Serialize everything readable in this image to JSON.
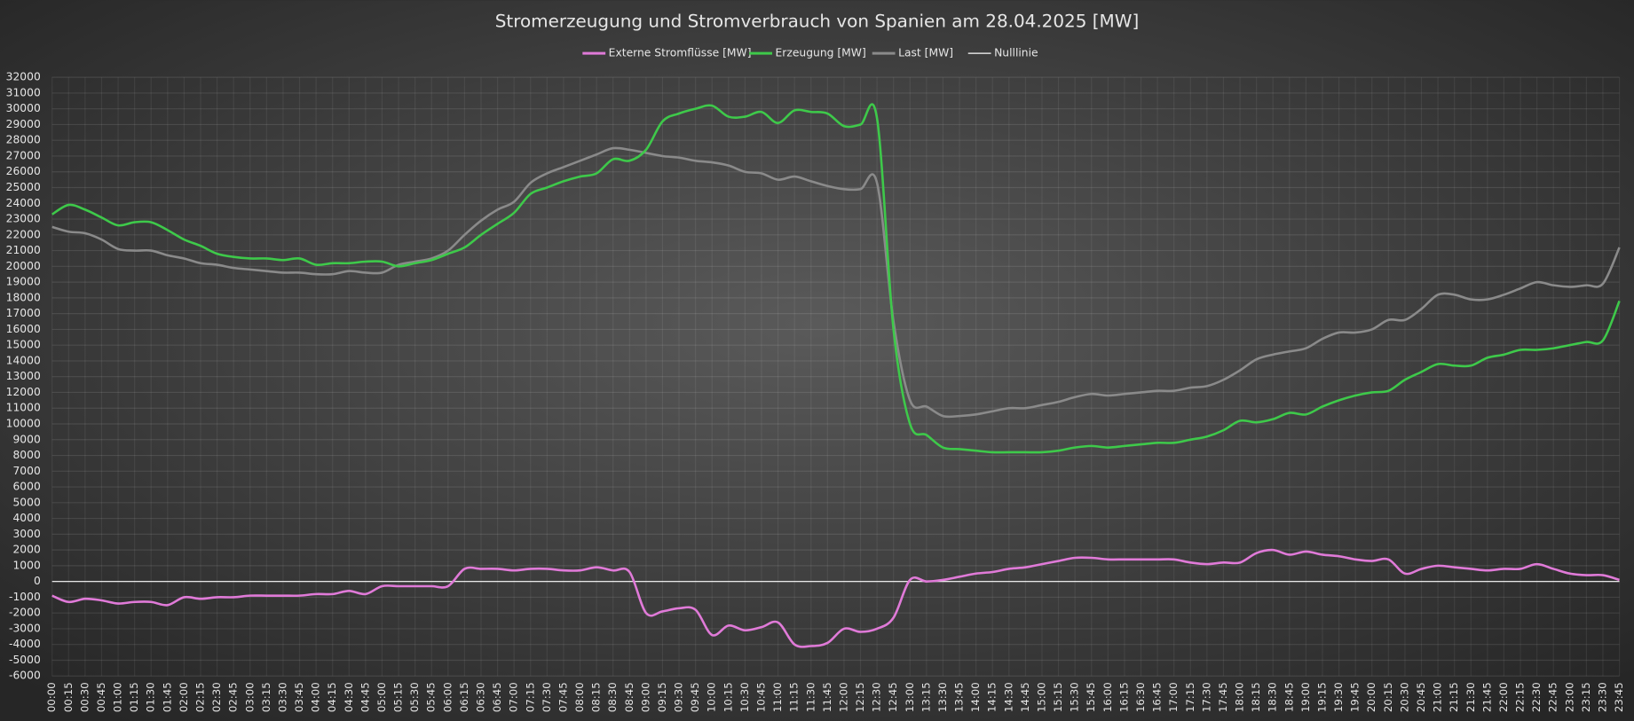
{
  "chart_data": {
    "type": "line",
    "title": "Stromerzeugung und Stromverbrauch von Spanien am 28.04.2025 [MW]",
    "categories": [
      "00:00",
      "00:15",
      "00:30",
      "00:45",
      "01:00",
      "01:15",
      "01:30",
      "01:45",
      "02:00",
      "02:15",
      "02:30",
      "02:45",
      "03:00",
      "03:15",
      "03:30",
      "03:45",
      "04:00",
      "04:15",
      "04:30",
      "04:45",
      "05:00",
      "05:15",
      "05:30",
      "05:45",
      "06:00",
      "06:15",
      "06:30",
      "06:45",
      "07:00",
      "07:15",
      "07:30",
      "07:45",
      "08:00",
      "08:15",
      "08:30",
      "08:45",
      "09:00",
      "09:15",
      "09:30",
      "09:45",
      "10:00",
      "10:15",
      "10:30",
      "10:45",
      "11:00",
      "11:15",
      "11:30",
      "11:45",
      "12:00",
      "12:15",
      "12:30",
      "12:45",
      "13:00",
      "13:15",
      "13:30",
      "13:45",
      "14:00",
      "14:15",
      "14:30",
      "14:45",
      "15:00",
      "15:15",
      "15:30",
      "15:45",
      "16:00",
      "16:15",
      "16:30",
      "16:45",
      "17:00",
      "17:15",
      "17:30",
      "17:45",
      "18:00",
      "18:15",
      "18:30",
      "18:45",
      "19:00",
      "19:15",
      "19:30",
      "19:45",
      "20:00",
      "20:15",
      "20:30",
      "20:45",
      "21:00",
      "21:15",
      "21:30",
      "21:45",
      "22:00",
      "22:15",
      "22:30",
      "22:45",
      "23:00",
      "23:15",
      "23:30",
      "23:45"
    ],
    "series": [
      {
        "name": "Externe Stromflüsse [MW]",
        "color": "#e07ad8",
        "values": [
          -900,
          -1300,
          -1100,
          -1200,
          -1400,
          -1300,
          -1300,
          -1500,
          -1000,
          -1100,
          -1000,
          -1000,
          -900,
          -900,
          -900,
          -900,
          -800,
          -800,
          -600,
          -800,
          -300,
          -300,
          -300,
          -300,
          -300,
          800,
          800,
          800,
          700,
          800,
          800,
          700,
          700,
          900,
          700,
          600,
          -2000,
          -1900,
          -1700,
          -1800,
          -3400,
          -2800,
          -3100,
          -2900,
          -2600,
          -4000,
          -4100,
          -3900,
          -3000,
          -3200,
          -3000,
          -2300,
          100,
          0,
          100,
          300,
          500,
          600,
          800,
          900,
          1100,
          1300,
          1500,
          1500,
          1400,
          1400,
          1400,
          1400,
          1400,
          1200,
          1100,
          1200,
          1200,
          1800,
          2000,
          1700,
          1900,
          1700,
          1600,
          1400,
          1300,
          1400,
          500,
          800,
          1000,
          900,
          800,
          700,
          800,
          800,
          1100,
          800,
          500,
          400,
          400,
          100
        ]
      },
      {
        "name": "Erzeugung [MW]",
        "color": "#3ec94a",
        "values": [
          23300,
          23900,
          23600,
          23100,
          22600,
          22800,
          22800,
          22300,
          21700,
          21300,
          20800,
          20600,
          20500,
          20500,
          20400,
          20500,
          20100,
          20200,
          20200,
          20300,
          20300,
          20000,
          20200,
          20400,
          20800,
          21200,
          22000,
          22700,
          23400,
          24600,
          25000,
          25400,
          25700,
          25900,
          26800,
          26700,
          27400,
          29200,
          29700,
          30000,
          30200,
          29500,
          29500,
          29800,
          29100,
          29900,
          29800,
          29700,
          28900,
          29000,
          29400,
          16000,
          10000,
          9300,
          8500,
          8400,
          8300,
          8200,
          8200,
          8200,
          8200,
          8300,
          8500,
          8600,
          8500,
          8600,
          8700,
          8800,
          8800,
          9000,
          9200,
          9600,
          10200,
          10100,
          10300,
          10700,
          10600,
          11100,
          11500,
          11800,
          12000,
          12100,
          12800,
          13300,
          13800,
          13700,
          13700,
          14200,
          14400,
          14700,
          14700,
          14800,
          15000,
          15200,
          15300,
          17800
        ]
      },
      {
        "name": "Last [MW]",
        "color": "#8a8a8a",
        "values": [
          22500,
          22200,
          22100,
          21700,
          21100,
          21000,
          21000,
          20700,
          20500,
          20200,
          20100,
          19900,
          19800,
          19700,
          19600,
          19600,
          19500,
          19500,
          19700,
          19600,
          19600,
          20100,
          20300,
          20500,
          21000,
          22000,
          22900,
          23600,
          24100,
          25300,
          25900,
          26300,
          26700,
          27100,
          27500,
          27400,
          27200,
          27000,
          26900,
          26700,
          26600,
          26400,
          26000,
          25900,
          25500,
          25700,
          25400,
          25100,
          24900,
          24900,
          25300,
          16500,
          11500,
          11100,
          10500,
          10500,
          10600,
          10800,
          11000,
          11000,
          11200,
          11400,
          11700,
          11900,
          11800,
          11900,
          12000,
          12100,
          12100,
          12300,
          12400,
          12800,
          13400,
          14100,
          14400,
          14600,
          14800,
          15400,
          15800,
          15800,
          16000,
          16600,
          16600,
          17300,
          18200,
          18200,
          17900,
          17900,
          18200,
          18600,
          19000,
          18800,
          18700,
          18800,
          18900,
          21200
        ]
      },
      {
        "name": "Nulllinie",
        "color": "#ffffff",
        "values": [
          0,
          0,
          0,
          0,
          0,
          0,
          0,
          0,
          0,
          0,
          0,
          0,
          0,
          0,
          0,
          0,
          0,
          0,
          0,
          0,
          0,
          0,
          0,
          0,
          0,
          0,
          0,
          0,
          0,
          0,
          0,
          0,
          0,
          0,
          0,
          0,
          0,
          0,
          0,
          0,
          0,
          0,
          0,
          0,
          0,
          0,
          0,
          0,
          0,
          0,
          0,
          0,
          0,
          0,
          0,
          0,
          0,
          0,
          0,
          0,
          0,
          0,
          0,
          0,
          0,
          0,
          0,
          0,
          0,
          0,
          0,
          0,
          0,
          0,
          0,
          0,
          0,
          0,
          0,
          0,
          0,
          0,
          0,
          0,
          0,
          0,
          0,
          0,
          0,
          0,
          0,
          0,
          0,
          0,
          0,
          0
        ]
      }
    ],
    "ylim": [
      -6000,
      32000
    ],
    "yticks": [
      -6000,
      -5000,
      -4000,
      -3000,
      -2000,
      -1000,
      0,
      1000,
      2000,
      3000,
      4000,
      5000,
      6000,
      7000,
      8000,
      9000,
      10000,
      11000,
      12000,
      13000,
      14000,
      15000,
      16000,
      17000,
      18000,
      19000,
      20000,
      21000,
      22000,
      23000,
      24000,
      25000,
      26000,
      27000,
      28000,
      29000,
      30000,
      31000,
      32000
    ],
    "grid": true,
    "legend": "top"
  }
}
